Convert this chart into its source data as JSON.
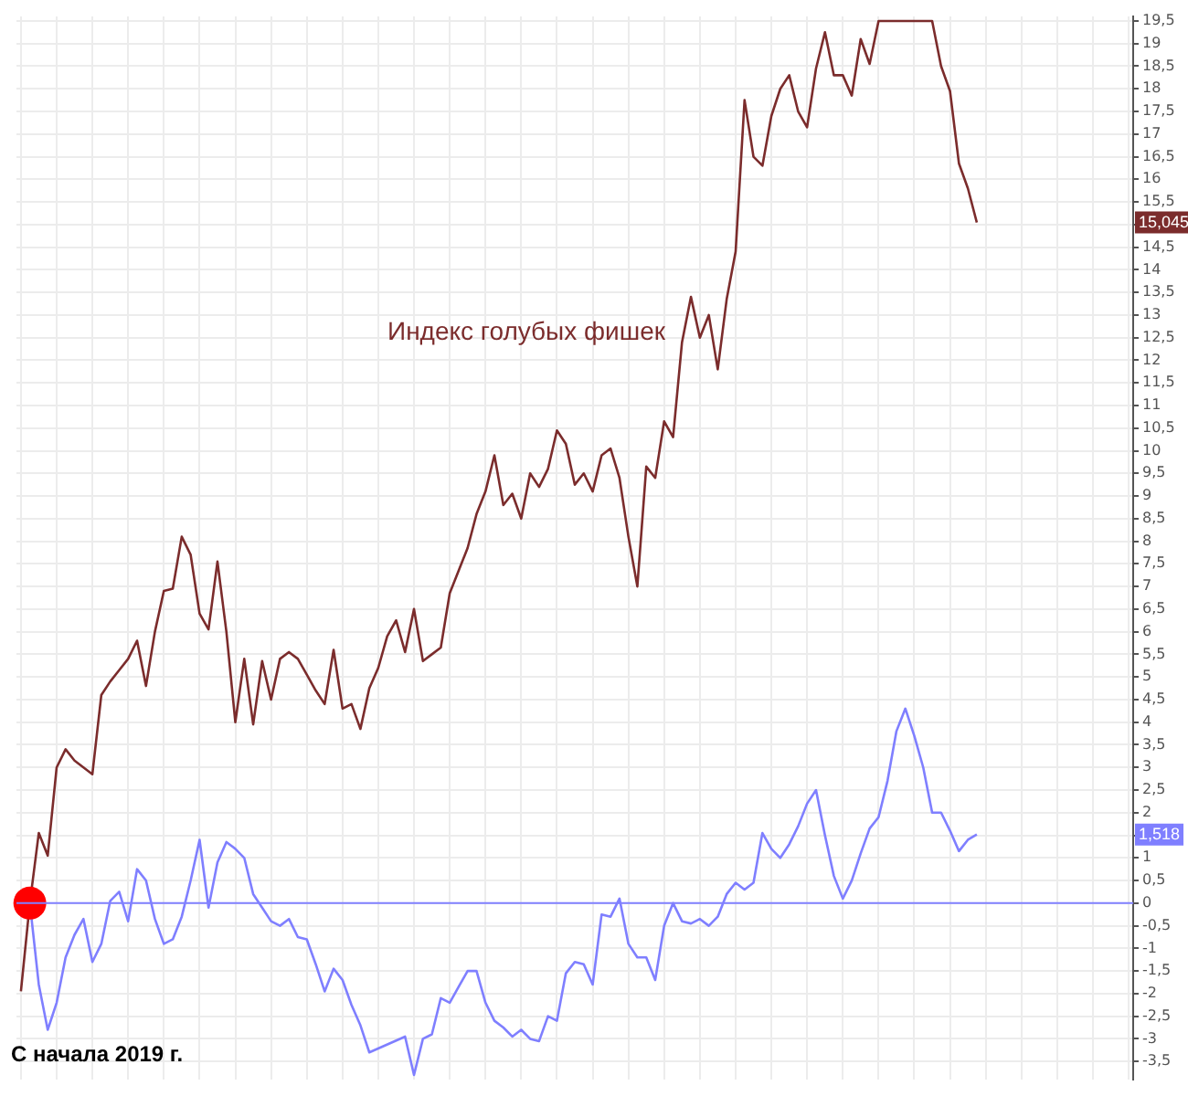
{
  "chart_data": {
    "type": "line",
    "categories": [
      null,
      null,
      null,
      null,
      null,
      null,
      null,
      null,
      null,
      null,
      null,
      null,
      null,
      null,
      null,
      null,
      null,
      null,
      null,
      null,
      null,
      null,
      null,
      null,
      null,
      null,
      null,
      null,
      null,
      null,
      null,
      null,
      null,
      null,
      null,
      null,
      null,
      null,
      null,
      null,
      null,
      null,
      null,
      null,
      null,
      null,
      null,
      null,
      null,
      null,
      null,
      null,
      null,
      null,
      null,
      null,
      null,
      null,
      null,
      null,
      null,
      null,
      null,
      null,
      null,
      null,
      null,
      null,
      null,
      null,
      null,
      null,
      null,
      null,
      null,
      null,
      null,
      null,
      null,
      null,
      null,
      null,
      null,
      null,
      null,
      null,
      null,
      null,
      null,
      null,
      null,
      null,
      null,
      null,
      null,
      null,
      null,
      null,
      null,
      null,
      null,
      null,
      null,
      null,
      null,
      null,
      null,
      null,
      null,
      null,
      null,
      null,
      null,
      null,
      null,
      null,
      null,
      null,
      null,
      null,
      null,
      null,
      null,
      null,
      null
    ],
    "annotations": [
      "С начала 2019 г.",
      "15,045",
      "1,518"
    ],
    "series": [
      {
        "name": "Индекс голубых фишек",
        "color": "#7b2c2c",
        "values": [
          -1.95,
          0,
          1.55,
          1.05,
          3.0,
          3.4,
          3.15,
          3.0,
          2.85,
          4.6,
          4.9,
          5.15,
          5.4,
          5.8,
          4.8,
          6.0,
          6.9,
          6.95,
          8.1,
          7.7,
          6.4,
          6.05,
          7.55,
          6.0,
          4.0,
          5.4,
          3.95,
          5.35,
          4.5,
          5.4,
          5.55,
          5.4,
          5.05,
          4.7,
          4.4,
          5.6,
          4.3,
          4.4,
          3.85,
          4.75,
          5.2,
          5.9,
          6.25,
          5.55,
          6.5,
          5.35,
          5.5,
          5.65,
          6.85,
          7.35,
          7.85,
          8.6,
          9.1,
          9.9,
          8.8,
          9.05,
          8.5,
          9.5,
          9.2,
          9.6,
          10.45,
          10.15,
          9.25,
          9.5,
          9.1,
          9.9,
          10.05,
          9.4,
          8.1,
          7.0,
          9.65,
          9.4,
          10.65,
          10.3,
          12.4,
          13.4,
          12.5,
          13.0,
          11.8,
          13.35,
          14.4,
          17.75,
          16.5,
          16.3,
          17.4,
          18.0,
          18.3,
          17.5,
          17.15,
          18.45,
          19.25,
          18.3,
          18.3,
          17.85,
          19.1,
          18.55,
          19.5,
          null,
          null,
          null,
          null,
          null,
          19.5,
          18.5,
          17.95,
          16.35,
          15.8,
          15.045,
          null,
          null,
          null,
          null,
          null,
          null,
          null,
          null,
          null,
          null,
          null,
          null,
          null,
          null,
          null,
          null,
          null
        ]
      },
      {
        "color": "#7f7fff",
        "values": [
          null,
          0,
          -1.8,
          -2.8,
          -2.2,
          -1.2,
          -0.7,
          -0.35,
          -1.3,
          -0.9,
          0.05,
          0.25,
          -0.4,
          0.75,
          0.5,
          -0.35,
          -0.9,
          -0.8,
          -0.3,
          0.5,
          1.4,
          -0.1,
          0.9,
          1.35,
          1.2,
          1.0,
          0.2,
          -0.1,
          -0.4,
          -0.5,
          -0.35,
          -0.75,
          -0.8,
          -1.35,
          -1.95,
          -1.45,
          -1.7,
          -2.25,
          -2.7,
          -3.3,
          null,
          null,
          null,
          -2.95,
          -3.8,
          -3.0,
          -2.9,
          -2.1,
          -2.2,
          -1.85,
          -1.5,
          -1.5,
          -2.2,
          -2.6,
          -2.75,
          -2.95,
          -2.8,
          -3.0,
          -3.05,
          -2.5,
          -2.6,
          -1.55,
          -1.3,
          -1.35,
          -1.8,
          -0.25,
          -0.3,
          0.1,
          -0.9,
          -1.2,
          -1.2,
          -1.7,
          -0.5,
          0.0,
          -0.4,
          -0.45,
          -0.35,
          -0.5,
          -0.3,
          0.2,
          0.45,
          0.3,
          0.45,
          1.55,
          1.2,
          1.0,
          1.3,
          1.7,
          2.2,
          2.5,
          1.5,
          0.6,
          0.1,
          0.5,
          1.1,
          1.65,
          1.9,
          2.7,
          3.8,
          4.3,
          3.7,
          3.0,
          2.0,
          2.0,
          1.6,
          1.15,
          1.4,
          1.518,
          null,
          null,
          null,
          null,
          null,
          null,
          null,
          null,
          null,
          null,
          null,
          null,
          null,
          null,
          null,
          null,
          null
        ]
      },
      {
        "type": "scatter",
        "color": "#ff0000",
        "values": [
          null,
          0,
          null,
          null,
          null,
          null,
          null,
          null,
          null,
          null,
          null,
          null,
          null,
          null,
          null,
          null,
          null,
          null,
          null,
          null,
          null,
          null,
          null,
          null,
          null,
          null,
          null,
          null,
          null,
          null,
          null,
          null,
          null,
          null,
          null,
          null,
          null,
          null,
          null,
          null,
          null,
          null,
          null,
          null,
          null,
          null,
          null,
          null,
          null,
          null,
          null,
          null,
          null,
          null,
          null,
          null,
          null,
          null,
          null,
          null,
          null,
          null,
          null,
          null,
          null,
          null,
          null,
          null,
          null,
          null,
          null,
          null,
          null,
          null,
          null,
          null,
          null,
          null,
          null,
          null,
          null,
          null,
          null,
          null,
          null,
          null,
          null,
          null,
          null,
          null,
          null,
          null,
          null,
          null,
          null,
          null,
          null,
          null,
          null,
          null,
          null,
          null,
          null,
          null,
          null,
          null,
          null,
          null,
          null,
          null,
          null,
          null,
          null,
          null,
          null,
          null,
          null,
          null,
          null,
          null,
          null,
          null,
          null,
          null,
          null
        ]
      }
    ],
    "ref_lines": [
      {
        "axis": "y",
        "value": 0,
        "color": "#8080ff"
      }
    ],
    "ylim": [
      -3.9,
      19.6
    ],
    "yticks": [
      {
        "value": -3.5,
        "label": "-3,5"
      },
      -3,
      {
        "value": -2.5,
        "label": "-2,5"
      },
      -2,
      {
        "value": -1.5,
        "label": "-1,5"
      },
      -1,
      {
        "value": -0.5,
        "label": "-0,5"
      },
      0,
      {
        "value": 0.5,
        "label": "0,5"
      },
      1,
      {
        "value": 1.5,
        "label": null
      },
      2,
      {
        "value": 2.5,
        "label": "2,5"
      },
      3,
      {
        "value": 3.5,
        "label": "3,5"
      },
      4,
      {
        "value": 4.5,
        "label": "4,5"
      },
      5,
      {
        "value": 5.5,
        "label": "5,5"
      },
      6,
      {
        "value": 6.5,
        "label": "6,5"
      },
      7,
      {
        "value": 7.5,
        "label": "7,5"
      },
      8,
      {
        "value": 8.5,
        "label": "8,5"
      },
      9,
      {
        "value": 9.5,
        "label": "9,5"
      },
      10,
      {
        "value": 10.5,
        "label": "10,5"
      },
      11,
      {
        "value": 11.5,
        "label": "11,5"
      },
      12,
      {
        "value": 12.5,
        "label": "12,5"
      },
      13,
      {
        "value": 13.5,
        "label": "13,5"
      },
      14,
      {
        "value": 14.5,
        "label": "14,5"
      },
      {
        "value": 15,
        "label": null
      },
      {
        "value": 15.5,
        "label": "15,5"
      },
      16,
      {
        "value": 16.5,
        "label": "16,5"
      },
      17,
      {
        "value": 17.5,
        "label": "17,5"
      },
      18,
      {
        "value": 18.5,
        "label": "18,5"
      },
      19,
      {
        "value": 19.5,
        "label": "19,5"
      }
    ],
    "tick_labels": "y",
    "grid": true,
    "legend": false,
    "line_style": "solid"
  }
}
